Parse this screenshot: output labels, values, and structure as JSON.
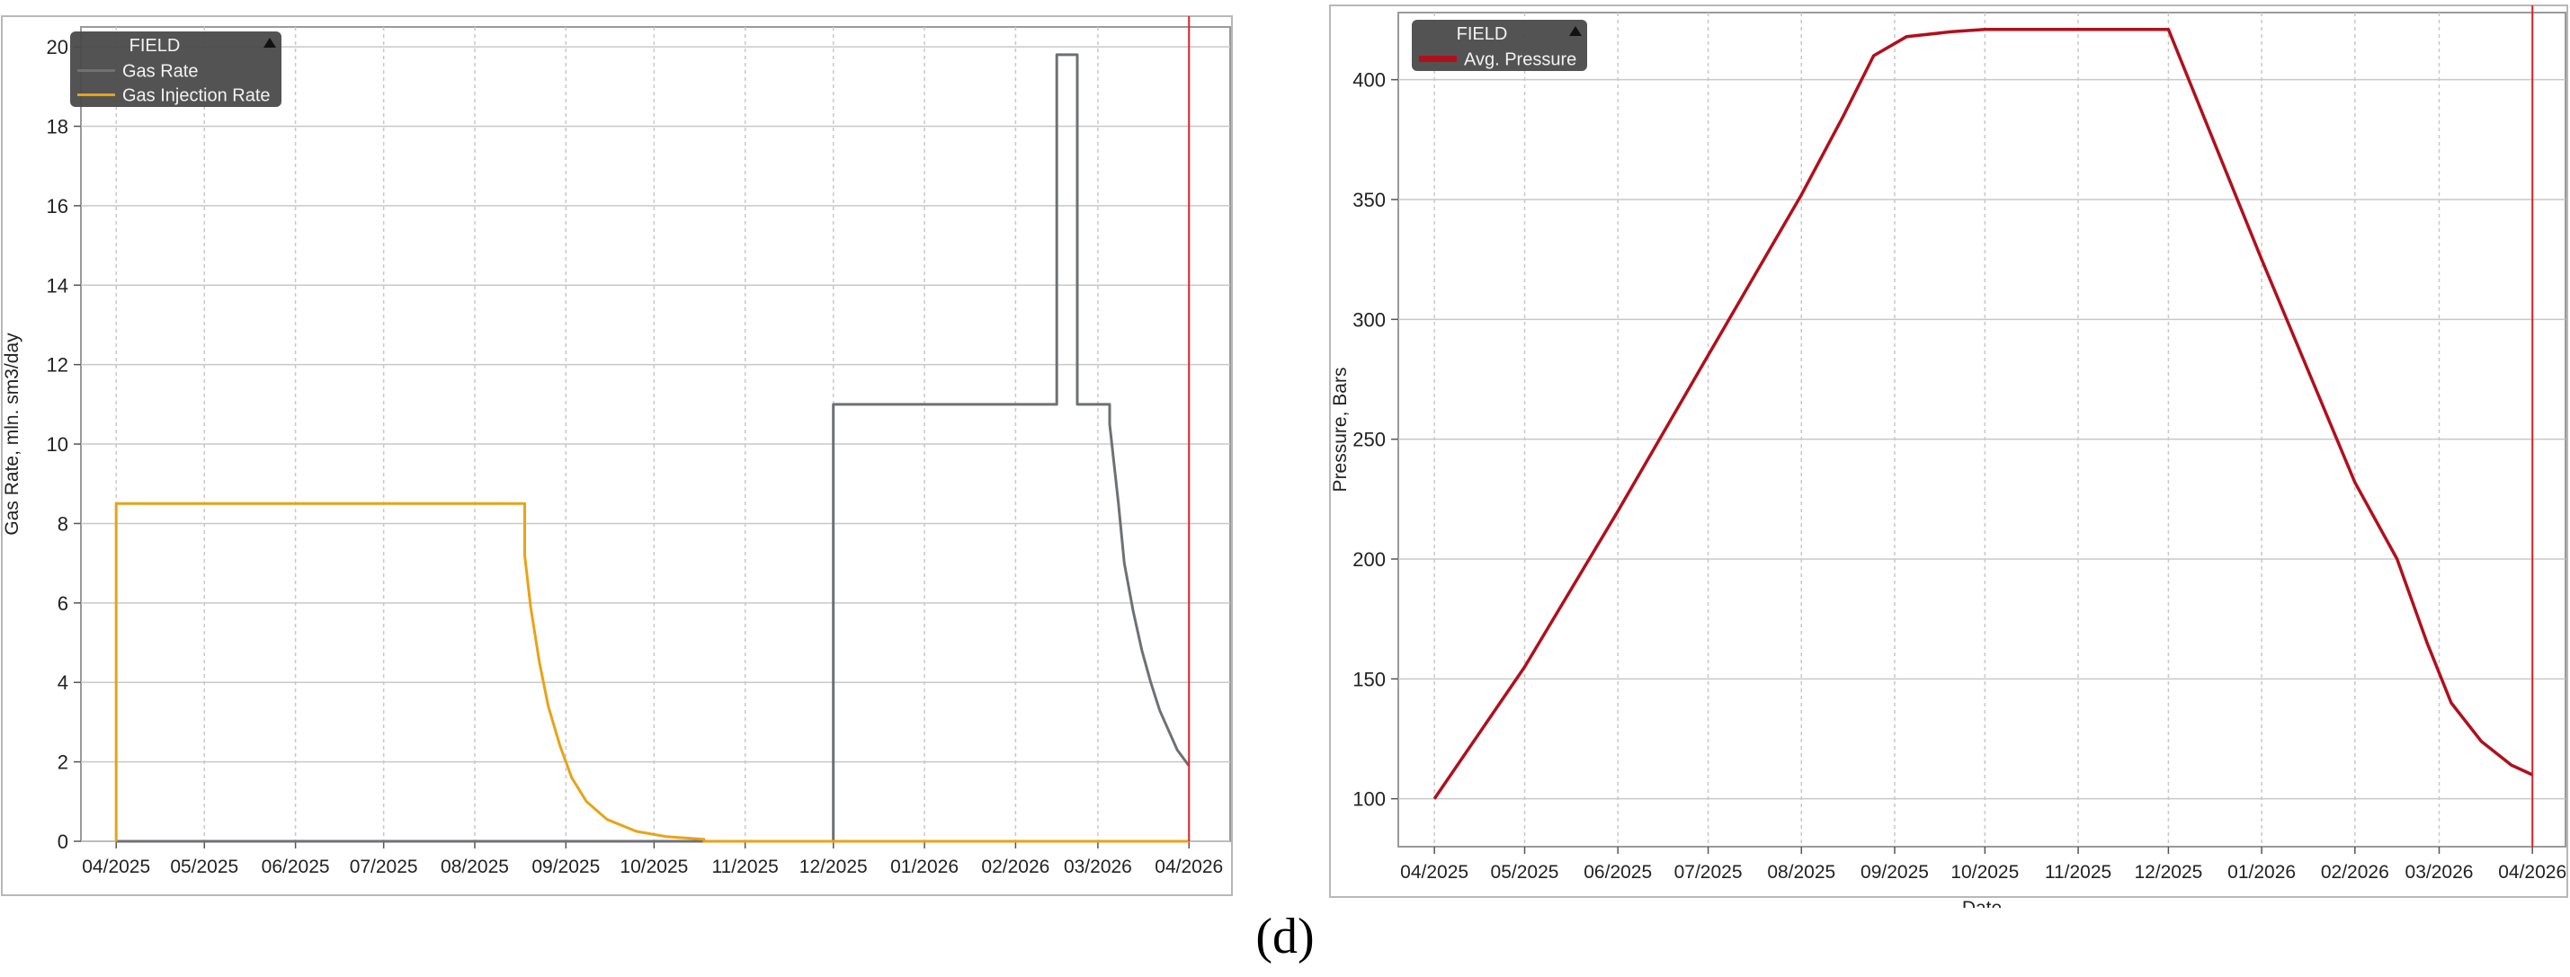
{
  "caption": "(d)",
  "chart_data": [
    {
      "type": "line",
      "legend_title": "FIELD",
      "legend_position": "top-left",
      "ylabel": "Gas Rate, mln. sm3/day",
      "xlabel": "",
      "ylim": [
        0,
        20.5
      ],
      "yticks": [
        0,
        2,
        4,
        6,
        8,
        10,
        12,
        14,
        16,
        18,
        20
      ],
      "xlim": [
        "2025-03-20",
        "2026-04-15"
      ],
      "xticks": [
        "04/2025",
        "05/2025",
        "06/2025",
        "07/2025",
        "08/2025",
        "09/2025",
        "10/2025",
        "11/2025",
        "12/2025",
        "01/2026",
        "02/2026",
        "03/2026",
        "04/2026"
      ],
      "grid": true,
      "marker_line_date": "2026-04-01",
      "marker_line_color": "#e0202a",
      "series": [
        {
          "name": "Gas Rate",
          "color": "#6e7174",
          "x": [
            "2025-04-01",
            "2025-12-01",
            "2025-12-01",
            "2026-02-15",
            "2026-02-15",
            "2026-02-22",
            "2026-02-22",
            "2026-03-05",
            "2026-03-05",
            "2026-03-08",
            "2026-03-10",
            "2026-03-13",
            "2026-03-16",
            "2026-03-19",
            "2026-03-22",
            "2026-03-25",
            "2026-03-28",
            "2026-04-01"
          ],
          "values": [
            0,
            0,
            11,
            11,
            19.8,
            19.8,
            11,
            11,
            10.5,
            8.5,
            7.0,
            5.8,
            4.8,
            4.0,
            3.3,
            2.8,
            2.3,
            1.9
          ]
        },
        {
          "name": "Gas Injection Rate",
          "color": "#e8a317",
          "x": [
            "2025-04-01",
            "2025-04-01",
            "2025-08-18",
            "2025-08-18",
            "2025-08-20",
            "2025-08-23",
            "2025-08-26",
            "2025-08-30",
            "2025-09-03",
            "2025-09-08",
            "2025-09-15",
            "2025-09-25",
            "2025-10-05",
            "2025-10-18",
            "2025-10-18",
            "2026-04-01"
          ],
          "values": [
            0,
            8.5,
            8.5,
            7.2,
            5.9,
            4.5,
            3.4,
            2.4,
            1.6,
            1.0,
            0.55,
            0.25,
            0.12,
            0.05,
            0,
            0
          ]
        }
      ]
    },
    {
      "type": "line",
      "legend_title": "FIELD",
      "legend_position": "top-left",
      "ylabel": "Pressure, Bars",
      "xlabel": "Date",
      "ylim": [
        80,
        428
      ],
      "yticks": [
        100,
        150,
        200,
        250,
        300,
        350,
        400
      ],
      "xlim": [
        "2025-03-20",
        "2026-04-12"
      ],
      "xticks": [
        "04/2025",
        "05/2025",
        "06/2025",
        "07/2025",
        "08/2025",
        "09/2025",
        "10/2025",
        "11/2025",
        "12/2025",
        "01/2026",
        "02/2026",
        "03/2026",
        "04/2026"
      ],
      "grid": true,
      "marker_line_date": "2026-04-01",
      "marker_line_color": "#e0202a",
      "series": [
        {
          "name": "Avg. Pressure",
          "color": "#b0101c",
          "x": [
            "2025-04-01",
            "2025-05-01",
            "2025-06-01",
            "2025-07-01",
            "2025-08-01",
            "2025-08-15",
            "2025-08-25",
            "2025-09-05",
            "2025-09-20",
            "2025-10-01",
            "2025-11-01",
            "2025-12-01",
            "2026-01-01",
            "2026-02-01",
            "2026-02-15",
            "2026-02-25",
            "2026-03-05",
            "2026-03-15",
            "2026-03-25",
            "2026-04-01"
          ],
          "values": [
            100,
            155,
            220,
            285,
            352,
            385,
            410,
            418,
            420,
            421,
            421,
            421,
            325,
            232,
            200,
            165,
            140,
            124,
            114,
            110
          ]
        }
      ]
    }
  ]
}
